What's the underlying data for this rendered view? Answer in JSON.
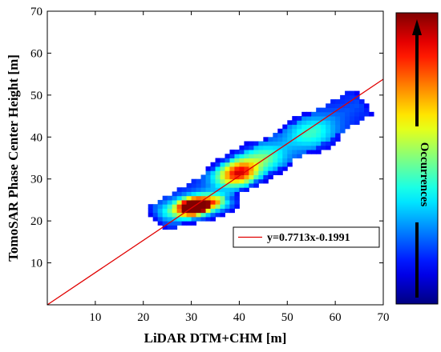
{
  "chart_data": {
    "type": "heatmap",
    "title": "",
    "xlabel": "LiDAR DTM+CHM [m]",
    "ylabel": "TomoSAR Phase Center Height [m]",
    "xlim": [
      0,
      70
    ],
    "ylim": [
      0,
      70
    ],
    "xticks": [
      "10",
      "20",
      "30",
      "40",
      "50",
      "60",
      "70"
    ],
    "yticks": [
      "10",
      "20",
      "30",
      "40",
      "50",
      "60",
      "70"
    ],
    "grid": false,
    "colormap": "jet",
    "colorbar_label": "Occurrences",
    "colorbar_arrow": "up",
    "fit_line": {
      "label": "y=0.7713x-0.1991",
      "slope": 0.7713,
      "intercept": -0.1991,
      "color": "#e00000"
    },
    "density_clusters": [
      {
        "x": 30.5,
        "y": 23.5,
        "sx": 1.8,
        "sy": 1.2,
        "w": 1.0
      },
      {
        "x": 34.0,
        "y": 24.5,
        "sx": 3.0,
        "sy": 1.4,
        "w": 0.6
      },
      {
        "x": 29.0,
        "y": 22.5,
        "sx": 3.5,
        "sy": 1.6,
        "w": 0.45
      },
      {
        "x": 40.5,
        "y": 32.0,
        "sx": 2.5,
        "sy": 2.0,
        "w": 0.5
      },
      {
        "x": 38.0,
        "y": 30.5,
        "sx": 3.0,
        "sy": 2.0,
        "w": 0.35
      },
      {
        "x": 45.0,
        "y": 35.0,
        "sx": 3.5,
        "sy": 2.5,
        "w": 0.3
      },
      {
        "x": 55.0,
        "y": 41.0,
        "sx": 4.0,
        "sy": 3.0,
        "w": 0.25
      }
    ],
    "density_band": {
      "axis_from": [
        24,
        21
      ],
      "axis_to": [
        65,
        48
      ],
      "half_width": 3.6,
      "weight": 0.16
    },
    "legend_position": "lower-right"
  }
}
